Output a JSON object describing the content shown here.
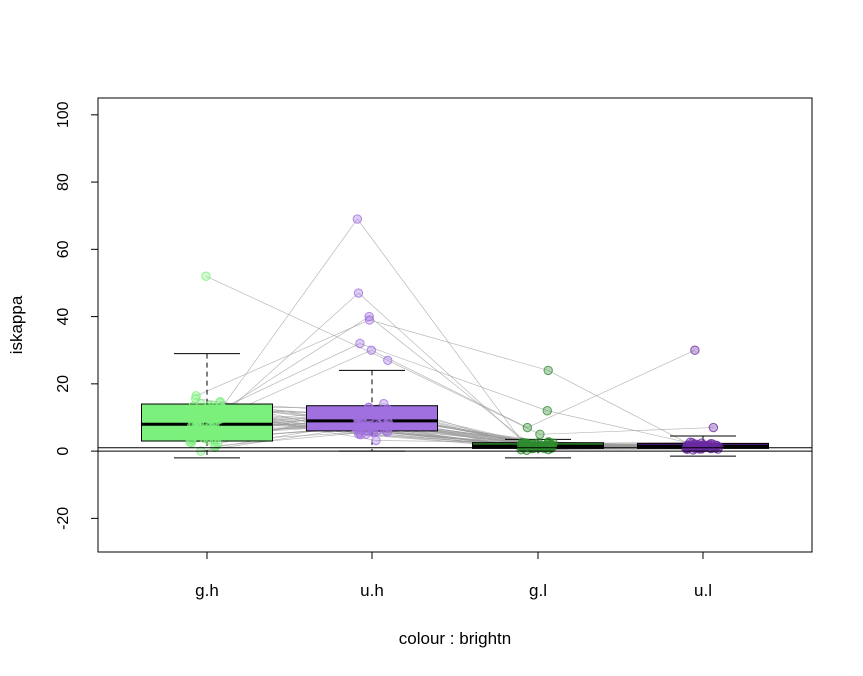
{
  "chart_data": {
    "type": "boxplot",
    "title": "",
    "xlabel": "colour : brightn",
    "ylabel": "iskappa",
    "ylim": [
      -30,
      105
    ],
    "yticks": [
      -20,
      0,
      20,
      40,
      60,
      80,
      100
    ],
    "reference_lines_y": [
      0,
      1
    ],
    "grid": false,
    "categories": [
      "g.h",
      "u.h",
      "g.l",
      "u.l"
    ],
    "colors": {
      "g.h": "#7CF07C",
      "u.h": "#A070E0",
      "g.l": "#2E8B2E",
      "u.l": "#6A2AA0",
      "connect_lines": "#9a9a9a"
    },
    "boxes": [
      {
        "category": "g.h",
        "whisker_low": -2,
        "q1": 3,
        "median": 8,
        "q3": 14,
        "whisker_high": 29,
        "outliers": [
          52
        ]
      },
      {
        "category": "u.h",
        "whisker_low": 0,
        "q1": 6,
        "median": 9,
        "q3": 13.5,
        "whisker_high": 24,
        "outliers": [
          27,
          30,
          32,
          39,
          40,
          47,
          69
        ]
      },
      {
        "category": "g.l",
        "whisker_low": -2,
        "q1": 0.8,
        "median": 1.5,
        "q3": 2.5,
        "whisker_high": 3.5,
        "outliers": [
          5,
          7,
          12,
          24
        ]
      },
      {
        "category": "u.l",
        "whisker_low": -1.5,
        "q1": 0.8,
        "median": 1.5,
        "q3": 2.3,
        "whisker_high": 4.5,
        "outliers": [
          7,
          30
        ]
      }
    ]
  }
}
